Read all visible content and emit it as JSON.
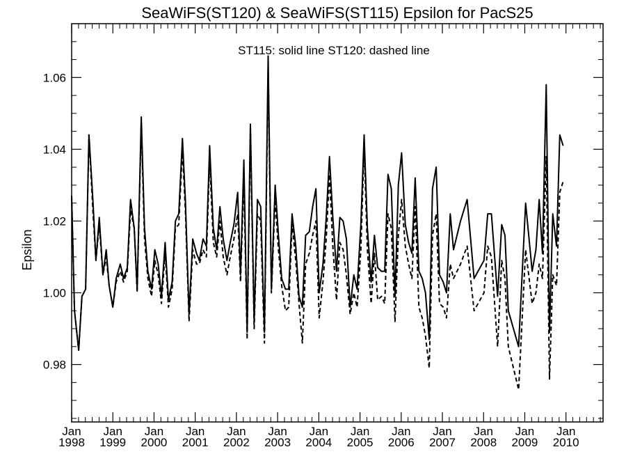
{
  "chart_data": {
    "type": "line",
    "title": "SeaWiFS(ST120) & SeaWiFS(ST115)  Epsilon for PacS25",
    "ylabel": "Epsilon",
    "xlabel": "",
    "annotation": "ST115: solid line   ST120: dashed line",
    "xlim": [
      1998.0,
      2010.9
    ],
    "ylim": [
      0.964,
      1.075
    ],
    "yticks": [
      {
        "value": 0.98,
        "label": "0.98"
      },
      {
        "value": 1.0,
        "label": "1.00"
      },
      {
        "value": 1.02,
        "label": "1.02"
      },
      {
        "value": 1.04,
        "label": "1.04"
      },
      {
        "value": 1.06,
        "label": "1.06"
      }
    ],
    "xticks": [
      {
        "value": 1998,
        "month": "Jan",
        "year": "1998"
      },
      {
        "value": 1999,
        "month": "Jan",
        "year": "1999"
      },
      {
        "value": 2000,
        "month": "Jan",
        "year": "2000"
      },
      {
        "value": 2001,
        "month": "Jan",
        "year": "2001"
      },
      {
        "value": 2002,
        "month": "Jan",
        "year": "2002"
      },
      {
        "value": 2003,
        "month": "Jan",
        "year": "2003"
      },
      {
        "value": 2004,
        "month": "Jan",
        "year": "2004"
      },
      {
        "value": 2005,
        "month": "Jan",
        "year": "2005"
      },
      {
        "value": 2006,
        "month": "Jan",
        "year": "2006"
      },
      {
        "value": 2007,
        "month": "Jan",
        "year": "2007"
      },
      {
        "value": 2008,
        "month": "Jan",
        "year": "2008"
      },
      {
        "value": 2009,
        "month": "Jan",
        "year": "2009"
      },
      {
        "value": 2010,
        "month": "Jan",
        "year": "2010"
      }
    ],
    "series": [
      {
        "name": "ST115",
        "style": "solid",
        "color": "#000000",
        "points": [
          [
            1998.0,
            1.027
          ],
          [
            1998.07,
            0.995
          ],
          [
            1998.17,
            0.984
          ],
          [
            1998.25,
            0.999
          ],
          [
            1998.34,
            1.001
          ],
          [
            1998.42,
            1.044
          ],
          [
            1998.52,
            1.025
          ],
          [
            1998.59,
            1.009
          ],
          [
            1998.67,
            1.021
          ],
          [
            1998.76,
            1.005
          ],
          [
            1998.84,
            1.012
          ],
          [
            1998.91,
            1.002
          ],
          [
            1999.0,
            0.996
          ],
          [
            1999.08,
            1.004
          ],
          [
            1999.18,
            1.008
          ],
          [
            1999.26,
            1.004
          ],
          [
            1999.35,
            1.007
          ],
          [
            1999.43,
            1.026
          ],
          [
            1999.52,
            1.018
          ],
          [
            1999.59,
            1.001
          ],
          [
            1999.69,
            1.049
          ],
          [
            1999.77,
            1.018
          ],
          [
            1999.85,
            1.006
          ],
          [
            1999.94,
            1.001
          ],
          [
            2000.02,
            1.012
          ],
          [
            2000.1,
            1.008
          ],
          [
            2000.18,
            0.999
          ],
          [
            2000.27,
            1.014
          ],
          [
            2000.35,
            0.998
          ],
          [
            2000.44,
            1.003
          ],
          [
            2000.52,
            1.02
          ],
          [
            2000.6,
            1.022
          ],
          [
            2000.69,
            1.043
          ],
          [
            2000.76,
            1.026
          ],
          [
            2000.85,
            0.994
          ],
          [
            2000.94,
            1.015
          ],
          [
            2001.03,
            1.011
          ],
          [
            2001.1,
            1.009
          ],
          [
            2001.19,
            1.015
          ],
          [
            2001.27,
            1.013
          ],
          [
            2001.35,
            1.041
          ],
          [
            2001.44,
            1.018
          ],
          [
            2001.52,
            1.012
          ],
          [
            2001.6,
            1.024
          ],
          [
            2001.68,
            1.015
          ],
          [
            2001.77,
            1.009
          ],
          [
            2001.85,
            1.014
          ],
          [
            2001.94,
            1.019
          ],
          [
            2002.03,
            1.028
          ],
          [
            2002.1,
            1.005
          ],
          [
            2002.18,
            1.037
          ],
          [
            2002.26,
            0.989
          ],
          [
            2002.34,
            1.047
          ],
          [
            2002.43,
            0.992
          ],
          [
            2002.51,
            1.026
          ],
          [
            2002.59,
            1.024
          ],
          [
            2002.68,
            0.989
          ],
          [
            2002.77,
            1.066
          ],
          [
            2002.85,
            1.001
          ],
          [
            2002.94,
            1.03
          ],
          [
            2003.02,
            1.016
          ],
          [
            2003.1,
            1.004
          ],
          [
            2003.19,
            1.001
          ],
          [
            2003.27,
            1.001
          ],
          [
            2003.35,
            1.022
          ],
          [
            2003.44,
            1.013
          ],
          [
            2003.52,
            0.999
          ],
          [
            2003.6,
            0.996
          ],
          [
            2003.68,
            1.016
          ],
          [
            2003.77,
            1.017
          ],
          [
            2003.85,
            1.024
          ],
          [
            2003.93,
            1.029
          ],
          [
            2004.01,
            1.0
          ],
          [
            2004.1,
            1.008
          ],
          [
            2004.18,
            1.021
          ],
          [
            2004.26,
            1.038
          ],
          [
            2004.34,
            1.021
          ],
          [
            2004.43,
            1.006
          ],
          [
            2004.51,
            1.021
          ],
          [
            2004.59,
            1.02
          ],
          [
            2004.67,
            1.015
          ],
          [
            2004.76,
            0.996
          ],
          [
            2004.85,
            1.005
          ],
          [
            2004.93,
            1.001
          ],
          [
            2005.02,
            1.019
          ],
          [
            2005.1,
            1.044
          ],
          [
            2005.18,
            1.018
          ],
          [
            2005.27,
            1.003
          ],
          [
            2005.35,
            1.016
          ],
          [
            2005.43,
            1.007
          ],
          [
            2005.52,
            1.006
          ],
          [
            2005.6,
            1.006
          ],
          [
            2005.68,
            1.033
          ],
          [
            2005.76,
            1.029
          ],
          [
            2005.85,
            0.999
          ],
          [
            2005.93,
            1.03
          ],
          [
            2006.01,
            1.039
          ],
          [
            2006.1,
            1.019
          ],
          [
            2006.18,
            1.014
          ],
          [
            2006.26,
            1.011
          ],
          [
            2006.34,
            1.032
          ],
          [
            2006.43,
            1.006
          ],
          [
            2006.51,
            1.004
          ],
          [
            2006.59,
            1.0
          ],
          [
            2006.68,
            0.987
          ],
          [
            2006.76,
            1.029
          ],
          [
            2006.85,
            1.035
          ],
          [
            2006.93,
            1.005
          ],
          [
            2007.02,
            1.003
          ],
          [
            2007.1,
            1.0
          ],
          [
            2007.19,
            1.022
          ],
          [
            2007.27,
            1.012
          ],
          [
            2007.44,
            1.02
          ],
          [
            2007.6,
            1.026
          ],
          [
            2007.77,
            1.004
          ],
          [
            2008.01,
            1.009
          ],
          [
            2008.1,
            1.022
          ],
          [
            2008.19,
            1.022
          ],
          [
            2008.34,
            0.999
          ],
          [
            2008.44,
            1.019
          ],
          [
            2008.52,
            1.016
          ],
          [
            2008.6,
            0.995
          ],
          [
            2008.85,
            0.985
          ],
          [
            2009.02,
            1.025
          ],
          [
            2009.18,
            1.006
          ],
          [
            2009.27,
            1.012
          ],
          [
            2009.35,
            1.026
          ],
          [
            2009.43,
            1.011
          ],
          [
            2009.52,
            1.058
          ],
          [
            2009.6,
            0.989
          ],
          [
            2009.68,
            1.022
          ],
          [
            2009.77,
            1.013
          ],
          [
            2009.85,
            1.044
          ],
          [
            2009.93,
            1.041
          ]
        ]
      },
      {
        "name": "ST120",
        "style": "dashed",
        "color": "#000000",
        "points": [
          [
            1998.0,
            1.027
          ],
          [
            1998.07,
            0.995
          ],
          [
            1998.17,
            0.984
          ],
          [
            1998.25,
            0.999
          ],
          [
            1998.34,
            1.001
          ],
          [
            1998.42,
            1.044
          ],
          [
            1998.52,
            1.022
          ],
          [
            1998.59,
            1.009
          ],
          [
            1998.67,
            1.019
          ],
          [
            1998.76,
            1.005
          ],
          [
            1998.84,
            1.01
          ],
          [
            1998.91,
            1.002
          ],
          [
            1999.0,
            0.996
          ],
          [
            1999.08,
            1.003
          ],
          [
            1999.18,
            1.006
          ],
          [
            1999.26,
            1.003
          ],
          [
            1999.35,
            1.006
          ],
          [
            1999.43,
            1.023
          ],
          [
            1999.52,
            1.018
          ],
          [
            1999.59,
            1.0
          ],
          [
            1999.69,
            1.047
          ],
          [
            1999.77,
            1.015
          ],
          [
            1999.85,
            1.004
          ],
          [
            1999.94,
            0.999
          ],
          [
            2000.02,
            1.009
          ],
          [
            2000.1,
            1.005
          ],
          [
            2000.18,
            0.997
          ],
          [
            2000.27,
            1.011
          ],
          [
            2000.35,
            0.996
          ],
          [
            2000.44,
            1.001
          ],
          [
            2000.52,
            1.018
          ],
          [
            2000.6,
            1.019
          ],
          [
            2000.69,
            1.04
          ],
          [
            2000.76,
            1.023
          ],
          [
            2000.85,
            0.992
          ],
          [
            2000.94,
            1.012
          ],
          [
            2001.03,
            1.008
          ],
          [
            2001.1,
            1.008
          ],
          [
            2001.19,
            1.012
          ],
          [
            2001.27,
            1.01
          ],
          [
            2001.35,
            1.037
          ],
          [
            2001.44,
            1.014
          ],
          [
            2001.52,
            1.01
          ],
          [
            2001.6,
            1.02
          ],
          [
            2001.68,
            1.01
          ],
          [
            2001.77,
            1.005
          ],
          [
            2001.85,
            1.01
          ],
          [
            2001.94,
            1.015
          ],
          [
            2002.03,
            1.022
          ],
          [
            2002.1,
            1.003
          ],
          [
            2002.18,
            1.032
          ],
          [
            2002.26,
            0.987
          ],
          [
            2002.34,
            1.045
          ],
          [
            2002.43,
            0.99
          ],
          [
            2002.51,
            1.022
          ],
          [
            2002.59,
            1.02
          ],
          [
            2002.68,
            0.986
          ],
          [
            2002.77,
            1.063
          ],
          [
            2002.85,
            1.0
          ],
          [
            2002.94,
            1.026
          ],
          [
            2003.02,
            1.012
          ],
          [
            2003.1,
            1.002
          ],
          [
            2003.19,
            0.995
          ],
          [
            2003.27,
            0.996
          ],
          [
            2003.35,
            1.019
          ],
          [
            2003.44,
            1.009
          ],
          [
            2003.52,
            0.997
          ],
          [
            2003.6,
            0.986
          ],
          [
            2003.68,
            1.008
          ],
          [
            2003.77,
            1.011
          ],
          [
            2003.85,
            1.016
          ],
          [
            2003.93,
            1.02
          ],
          [
            2004.01,
            0.993
          ],
          [
            2004.1,
            1.003
          ],
          [
            2004.18,
            1.015
          ],
          [
            2004.26,
            1.033
          ],
          [
            2004.34,
            1.013
          ],
          [
            2004.43,
            0.998
          ],
          [
            2004.51,
            1.014
          ],
          [
            2004.59,
            1.012
          ],
          [
            2004.67,
            1.005
          ],
          [
            2004.76,
            0.994
          ],
          [
            2004.85,
            1.0
          ],
          [
            2004.93,
            0.996
          ],
          [
            2005.02,
            1.012
          ],
          [
            2005.1,
            1.041
          ],
          [
            2005.18,
            1.012
          ],
          [
            2005.27,
            0.997
          ],
          [
            2005.35,
            1.011
          ],
          [
            2005.43,
            0.998
          ],
          [
            2005.52,
            0.999
          ],
          [
            2005.6,
            0.997
          ],
          [
            2005.68,
            1.022
          ],
          [
            2005.76,
            1.018
          ],
          [
            2005.85,
            0.992
          ],
          [
            2005.93,
            1.016
          ],
          [
            2006.01,
            1.026
          ],
          [
            2006.1,
            1.013
          ],
          [
            2006.18,
            1.008
          ],
          [
            2006.26,
            1.004
          ],
          [
            2006.34,
            1.024
          ],
          [
            2006.43,
            0.996
          ],
          [
            2006.51,
            0.993
          ],
          [
            2006.59,
            0.988
          ],
          [
            2006.68,
            0.979
          ],
          [
            2006.76,
            1.016
          ],
          [
            2006.85,
            1.022
          ],
          [
            2006.93,
            0.997
          ],
          [
            2007.02,
            0.996
          ],
          [
            2007.1,
            0.993
          ],
          [
            2007.19,
            1.008
          ],
          [
            2007.27,
            1.004
          ],
          [
            2007.44,
            1.008
          ],
          [
            2007.6,
            1.013
          ],
          [
            2007.77,
            0.995
          ],
          [
            2008.01,
            1.0
          ],
          [
            2008.1,
            1.013
          ],
          [
            2008.19,
            1.01
          ],
          [
            2008.34,
            0.985
          ],
          [
            2008.44,
            1.009
          ],
          [
            2008.52,
            1.004
          ],
          [
            2008.6,
            0.985
          ],
          [
            2008.85,
            0.973
          ],
          [
            2009.02,
            1.012
          ],
          [
            2009.18,
            0.997
          ],
          [
            2009.27,
            1.0
          ],
          [
            2009.35,
            1.008
          ],
          [
            2009.43,
            1.004
          ],
          [
            2009.52,
            1.038
          ],
          [
            2009.6,
            0.976
          ],
          [
            2009.68,
            1.005
          ],
          [
            2009.77,
            1.002
          ],
          [
            2009.85,
            1.028
          ],
          [
            2009.93,
            1.031
          ]
        ]
      }
    ]
  }
}
